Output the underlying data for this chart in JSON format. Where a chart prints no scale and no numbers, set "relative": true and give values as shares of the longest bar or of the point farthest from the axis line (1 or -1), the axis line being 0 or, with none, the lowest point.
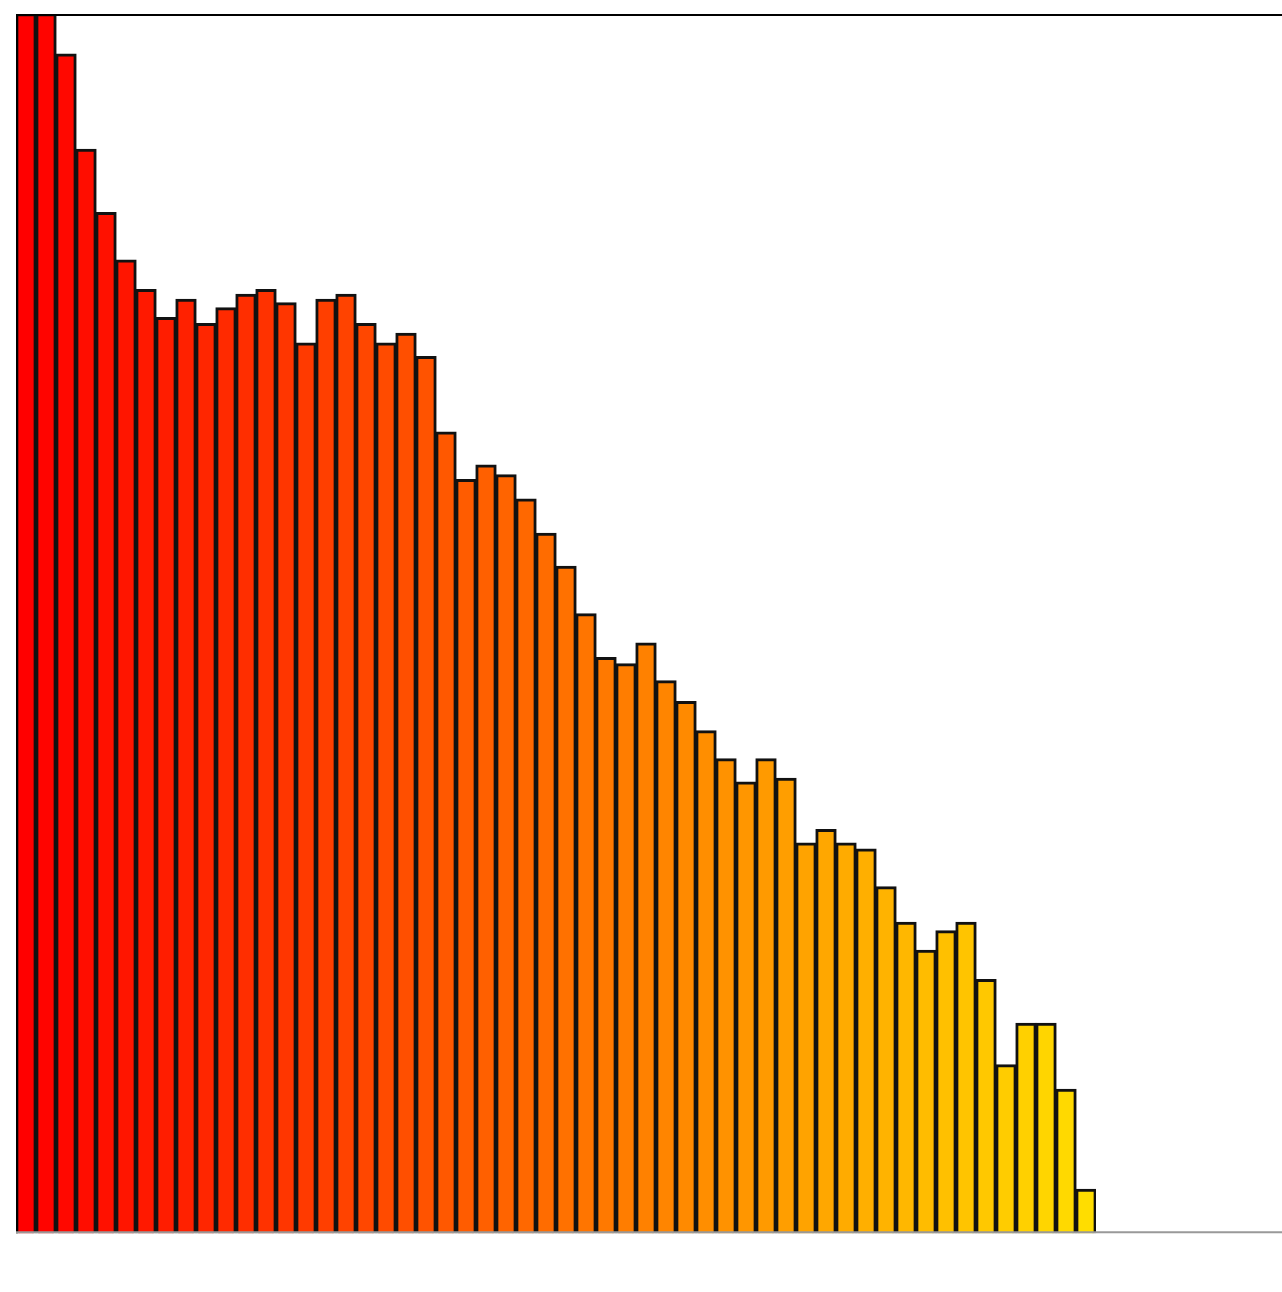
{
  "chart_data": {
    "type": "bar",
    "relative": true,
    "grid": false,
    "legend": false,
    "categories": [
      null,
      null,
      null,
      null,
      null,
      null,
      null,
      null,
      null,
      null,
      null,
      null,
      null,
      null,
      null,
      null,
      null,
      null,
      null,
      null,
      null,
      null,
      null,
      null,
      null,
      null,
      null,
      null,
      null,
      null,
      null,
      null,
      null,
      null,
      null,
      null,
      null,
      null,
      null,
      null,
      null,
      null,
      null,
      null,
      null,
      null,
      null,
      null,
      null,
      null,
      null,
      null,
      null,
      null
    ],
    "values": [
      1.0,
      1.0,
      0.967,
      0.889,
      0.837,
      0.798,
      0.774,
      0.751,
      0.766,
      0.746,
      0.759,
      0.77,
      0.774,
      0.763,
      0.73,
      0.766,
      0.77,
      0.746,
      0.73,
      0.738,
      0.719,
      0.657,
      0.618,
      0.63,
      0.622,
      0.602,
      0.574,
      0.547,
      0.508,
      0.472,
      0.467,
      0.484,
      0.453,
      0.436,
      0.412,
      0.389,
      0.37,
      0.389,
      0.373,
      0.32,
      0.331,
      0.32,
      0.315,
      0.284,
      0.255,
      0.232,
      0.248,
      0.255,
      0.208,
      0.138,
      0.172,
      0.172,
      0.118,
      0.036
    ],
    "colors": [
      "#ff0000",
      "#ff0400",
      "#ff0800",
      "#ff0d00",
      "#ff1100",
      "#ff1500",
      "#ff1900",
      "#ff1d00",
      "#ff2100",
      "#ff2600",
      "#ff2a00",
      "#ff2e00",
      "#ff3200",
      "#ff3600",
      "#ff3a00",
      "#ff3f00",
      "#ff4300",
      "#ff4700",
      "#ff4b00",
      "#ff4f00",
      "#ff5300",
      "#ff5800",
      "#ff5c00",
      "#ff6000",
      "#ff6400",
      "#ff6800",
      "#ff6c00",
      "#ff7100",
      "#ff7500",
      "#ff7900",
      "#ff7d00",
      "#ff8100",
      "#ff8500",
      "#ff8a00",
      "#ff8e00",
      "#ff9200",
      "#ff9600",
      "#ff9a00",
      "#ff9e00",
      "#ffa300",
      "#ffa700",
      "#ffab00",
      "#ffaf00",
      "#ffb300",
      "#ffb700",
      "#ffbc00",
      "#ffc000",
      "#ffc400",
      "#ffc800",
      "#ffcc00",
      "#ffd000",
      "#ffd500",
      "#ffd900",
      "#ffdd00"
    ]
  }
}
